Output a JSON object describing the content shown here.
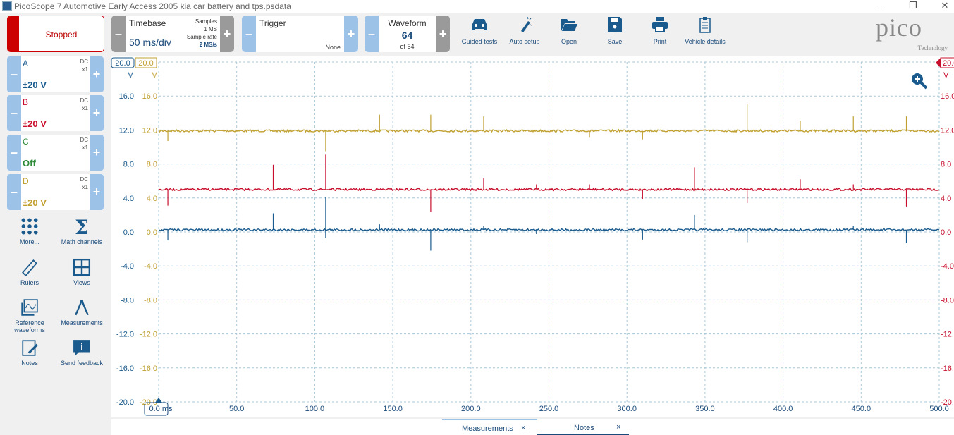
{
  "window": {
    "title": "PicoScope 7 Automotive Early Access 2005 kia car battery and tps.psdata",
    "minimize": "–",
    "restore": "❐",
    "close": "✕"
  },
  "toolbar": {
    "status": "Stopped",
    "timebase": {
      "label": "Timebase",
      "value": "50 ms/div",
      "samples_label": "Samples",
      "samples": "1 MS",
      "rate_label": "Sample rate",
      "rate": "2 MS/s"
    },
    "trigger": {
      "label": "Trigger",
      "mode": "None"
    },
    "waveform": {
      "label": "Waveform",
      "current": "64",
      "total": "of 64"
    },
    "minus": "–",
    "plus": "+",
    "buttons": [
      {
        "label": "Guided tests",
        "icon": "car-icon"
      },
      {
        "label": "Auto setup",
        "icon": "wand-icon"
      },
      {
        "label": "Open",
        "icon": "folder-icon"
      },
      {
        "label": "Save",
        "icon": "save-icon"
      },
      {
        "label": "Print",
        "icon": "printer-icon"
      },
      {
        "label": "Vehicle details",
        "icon": "clipboard-icon"
      }
    ],
    "logo": {
      "text": "pico",
      "sub": "Technology"
    }
  },
  "channels": [
    {
      "name": "A",
      "coupling": "DC",
      "probe": "x1",
      "range": "±20 V",
      "color": "#1a5a8c"
    },
    {
      "name": "B",
      "coupling": "DC",
      "probe": "x1",
      "range": "±20 V",
      "color": "#c8102e"
    },
    {
      "name": "C",
      "coupling": "DC",
      "probe": "x1",
      "range": "Off",
      "color": "#2e8b3a"
    },
    {
      "name": "D",
      "coupling": "DC",
      "probe": "x1",
      "range": "±20 V",
      "color": "#c0a030"
    }
  ],
  "sidebar": [
    {
      "label": "More...",
      "icon": "grid-dots-icon"
    },
    {
      "label": "Math channels",
      "icon": "sigma-icon"
    },
    {
      "label": "Rulers",
      "icon": "ruler-icon"
    },
    {
      "label": "Views",
      "icon": "views-icon"
    },
    {
      "label": "Reference waveforms",
      "icon": "reference-waveform-icon"
    },
    {
      "label": "Measurements",
      "icon": "compass-icon"
    },
    {
      "label": "Notes",
      "icon": "notes-icon"
    },
    {
      "label": "Send feedback",
      "icon": "feedback-icon"
    }
  ],
  "bottom_tabs": [
    {
      "label": "Measurements",
      "close": "×"
    },
    {
      "label": "Notes",
      "close": "×"
    }
  ],
  "chart_data": {
    "type": "line",
    "xlabel": "ms",
    "ylabel": "V",
    "xlim": [
      0,
      500
    ],
    "ylim": [
      -20,
      20
    ],
    "x_ticks": [
      "0.0 ms",
      "50.0",
      "100.0",
      "150.0",
      "200.0",
      "250.0",
      "300.0",
      "350.0",
      "400.0",
      "450.0",
      "500.0"
    ],
    "y_ticks": [
      "20.0",
      "16.0",
      "12.0",
      "8.0",
      "4.0",
      "0.0",
      "-4.0",
      "-8.0",
      "-12.0",
      "-16.0",
      "-20.0"
    ],
    "axis_unit": "V",
    "axis_top": "20.0",
    "grid": true,
    "series": [
      {
        "name": "D",
        "color": "#c0a030",
        "baseline": 11.9,
        "spikes": [
          [
            5.9,
            10.7
          ],
          [
            107,
            9.5
          ],
          [
            141.5,
            13.8
          ],
          [
            174.3,
            13.8
          ],
          [
            208.2,
            13.6
          ],
          [
            276,
            11.1
          ],
          [
            310,
            10.9
          ],
          [
            377,
            15.1
          ],
          [
            411,
            13.1
          ],
          [
            445,
            13.6
          ],
          [
            479,
            13.6
          ]
        ]
      },
      {
        "name": "B",
        "color": "#c8102e",
        "baseline": 5.0,
        "spikes": [
          [
            5.9,
            3.1
          ],
          [
            73.4,
            7.9
          ],
          [
            107,
            9.1
          ],
          [
            174.3,
            2.4
          ],
          [
            208.2,
            6.3
          ],
          [
            242,
            5.6
          ],
          [
            276,
            5.6
          ],
          [
            310,
            3.9
          ],
          [
            343.3,
            7.6
          ],
          [
            377,
            3.4
          ],
          [
            411,
            6.2
          ],
          [
            445,
            5.6
          ],
          [
            479,
            3.0
          ]
        ]
      },
      {
        "name": "A",
        "color": "#1a5a8c",
        "baseline": 0.25,
        "spikes": [
          [
            5.9,
            -1.0
          ],
          [
            73.4,
            2.2
          ],
          [
            107,
            4.1
          ],
          [
            107,
            -0.7
          ],
          [
            141.5,
            0.9
          ],
          [
            174.3,
            -2.2
          ],
          [
            208.2,
            0.7
          ],
          [
            242,
            -0.25
          ],
          [
            310,
            -0.9
          ],
          [
            343.3,
            2.0
          ],
          [
            377,
            -1.2
          ],
          [
            445,
            0.7
          ],
          [
            479,
            -1.3
          ]
        ]
      }
    ]
  }
}
